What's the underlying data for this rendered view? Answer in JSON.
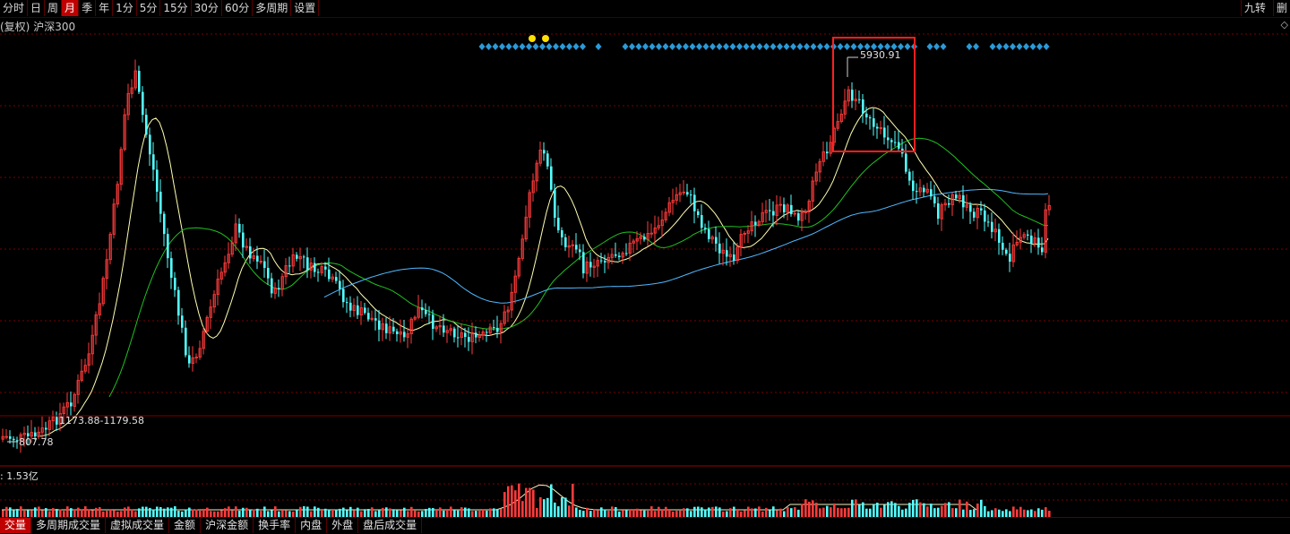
{
  "toolbar": {
    "periods": [
      {
        "label": "分时",
        "active": false
      },
      {
        "label": "日",
        "active": false
      },
      {
        "label": "周",
        "active": false
      },
      {
        "label": "月",
        "active": true
      },
      {
        "label": "季",
        "active": false
      },
      {
        "label": "年",
        "active": false
      },
      {
        "label": "1分",
        "active": false
      },
      {
        "label": "5分",
        "active": false
      },
      {
        "label": "15分",
        "active": false
      },
      {
        "label": "30分",
        "active": false
      },
      {
        "label": "60分",
        "active": false
      },
      {
        "label": "多周期",
        "active": false
      },
      {
        "label": "设置",
        "active": false
      }
    ],
    "right_a": "九转",
    "right_b": "删"
  },
  "info": {
    "adjust": "(复权)",
    "index_name": "沪深300"
  },
  "main_chart": {
    "high_label": "5930.91",
    "low_label": "807.78",
    "range_label": "1173.88-1179.58",
    "colors": {
      "up": "#ff3b3b",
      "down": "#54ffff",
      "ma5": "#ffffb0",
      "ma10": "#e8e8a0",
      "ma20": "#20c020",
      "ma60": "#50b8ff",
      "grid": "#7a0000",
      "highlight_box": "#ff2020"
    }
  },
  "volume_chart": {
    "label": "1.53亿"
  },
  "bottom_tabs": [
    {
      "label": "交量",
      "active": true
    },
    {
      "label": "多周期成交量",
      "active": false
    },
    {
      "label": "虚拟成交量",
      "active": false
    },
    {
      "label": "金额",
      "active": false
    },
    {
      "label": "沪深金额",
      "active": false
    },
    {
      "label": "换手率",
      "active": false
    },
    {
      "label": "内盘",
      "active": false
    },
    {
      "label": "外盘",
      "active": false
    },
    {
      "label": "盘后成交量",
      "active": false
    }
  ]
}
